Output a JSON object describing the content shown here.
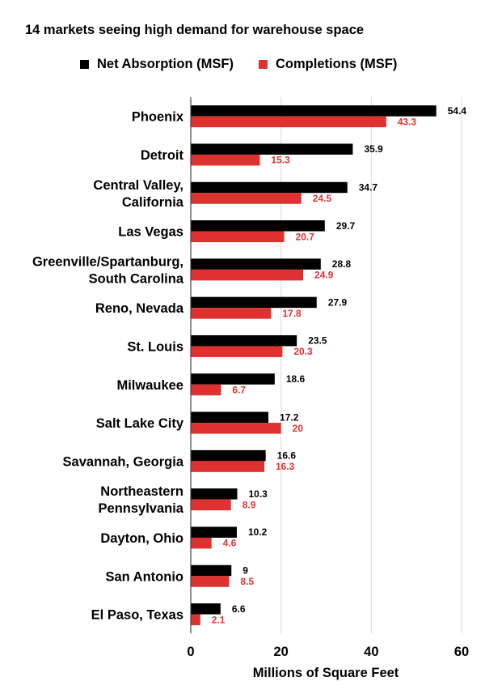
{
  "chart_data": {
    "type": "bar",
    "orientation": "horizontal",
    "title": "14 markets seeing high demand for warehouse space",
    "xlabel": "Millions of Square Feet",
    "ylabel": "",
    "xlim": [
      0,
      60
    ],
    "xticks": [
      "0",
      "20",
      "40",
      "60"
    ],
    "grid": "vertical",
    "legend_position": "top",
    "categories": [
      "Phoenix",
      "Detroit",
      "Central Valley, California",
      "Las Vegas",
      "Greenville/Spartanburg, South Carolina",
      "Reno, Nevada",
      "St. Louis",
      "Milwaukee",
      "Salt Lake City",
      "Savannah, Georgia",
      "Northeastern Pennsylvania",
      "Dayton, Ohio",
      "San Antonio",
      "El Paso, Texas"
    ],
    "category_lines": [
      [
        "Phoenix"
      ],
      [
        "Detroit"
      ],
      [
        "Central Valley,",
        "California"
      ],
      [
        "Las Vegas"
      ],
      [
        "Greenville/Spartanburg,",
        "South Carolina"
      ],
      [
        "Reno, Nevada"
      ],
      [
        "St. Louis"
      ],
      [
        "Milwaukee"
      ],
      [
        "Salt Lake City"
      ],
      [
        "Savannah, Georgia"
      ],
      [
        "Northeastern",
        "Pennsylvania"
      ],
      [
        "Dayton, Ohio"
      ],
      [
        "San Antonio"
      ],
      [
        "El Paso, Texas"
      ]
    ],
    "series": [
      {
        "name": "Net Absorption (MSF)",
        "color": "#000000",
        "values": [
          54.4,
          35.9,
          34.7,
          29.7,
          28.8,
          27.9,
          23.5,
          18.6,
          17.2,
          16.6,
          10.3,
          10.2,
          9,
          6.6
        ],
        "labels": [
          "54.4",
          "35.9",
          "34.7",
          "29.7",
          "28.8",
          "27.9",
          "23.5",
          "18.6",
          "17.2",
          "16.6",
          "10.3",
          "10.2",
          "9",
          "6.6"
        ]
      },
      {
        "name": "Completions (MSF)",
        "color": "#e03131",
        "values": [
          43.3,
          15.3,
          24.5,
          20.7,
          24.9,
          17.8,
          20.3,
          6.7,
          20,
          16.3,
          8.9,
          4.6,
          8.5,
          2.1
        ],
        "labels": [
          "43.3",
          "15.3",
          "24.5",
          "20.7",
          "24.9",
          "17.8",
          "20.3",
          "6.7",
          "20",
          "16.3",
          "8.9",
          "4.6",
          "8.5",
          "2.1"
        ]
      }
    ]
  }
}
